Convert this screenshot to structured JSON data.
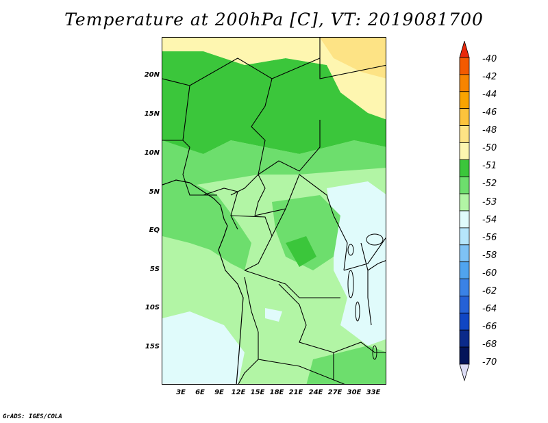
{
  "title": "Temperature at 200hPa [C], VT: 2019081700",
  "credit": "GrADS: IGES/COLA",
  "map": {
    "y_axis_labels": [
      "20N",
      "15N",
      "10N",
      "5N",
      "EQ",
      "5S",
      "10S",
      "15S"
    ],
    "x_axis_labels": [
      "3E",
      "6E",
      "9E",
      "12E",
      "15E",
      "18E",
      "21E",
      "24E",
      "27E",
      "30E",
      "33E"
    ]
  },
  "colorbar": {
    "labels": [
      "-40",
      "-42",
      "-44",
      "-46",
      "-48",
      "-50",
      "-51",
      "-52",
      "-53",
      "-54",
      "-56",
      "-58",
      "-60",
      "-62",
      "-64",
      "-66",
      "-68",
      "-70"
    ],
    "colors": [
      "#e8280a",
      "#f35a00",
      "#f78400",
      "#f9a400",
      "#fcc33c",
      "#fde385",
      "#fef6b0",
      "#3bc63b",
      "#6dde6d",
      "#b2f5a5",
      "#e0fbfb",
      "#b6e6fb",
      "#7ec2f5",
      "#50a4ef",
      "#3a82e6",
      "#2561d6",
      "#1046c4",
      "#0b2a8a",
      "#04145a",
      "#dcdcf5"
    ]
  }
}
